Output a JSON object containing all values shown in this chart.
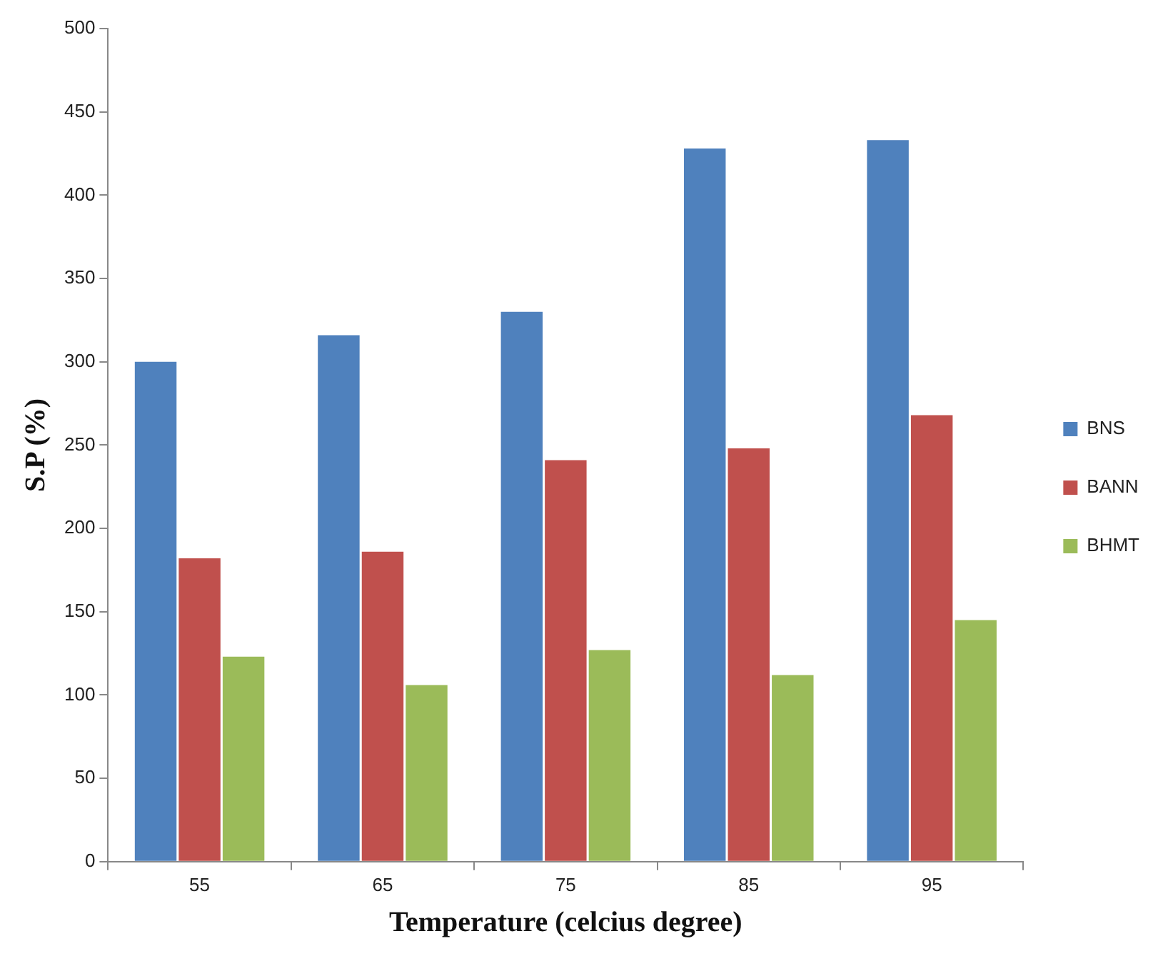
{
  "chart_data": {
    "type": "bar",
    "xlabel": "Temperature (celcius degree)",
    "ylabel": "S.P (%)",
    "categories": [
      "55",
      "65",
      "75",
      "85",
      "95"
    ],
    "series": [
      {
        "name": "BNS",
        "color": "#4f81bd",
        "values": [
          300,
          316,
          330,
          428,
          433
        ]
      },
      {
        "name": "BANN",
        "color": "#c0504d",
        "values": [
          182,
          186,
          241,
          248,
          268
        ]
      },
      {
        "name": "BHMT",
        "color": "#9bbb59",
        "values": [
          123,
          106,
          127,
          112,
          145
        ]
      }
    ],
    "ylim": [
      0,
      500
    ],
    "yticks": [
      0,
      50,
      100,
      150,
      200,
      250,
      300,
      350,
      400,
      450,
      500
    ],
    "grid": false,
    "legend": "right"
  }
}
